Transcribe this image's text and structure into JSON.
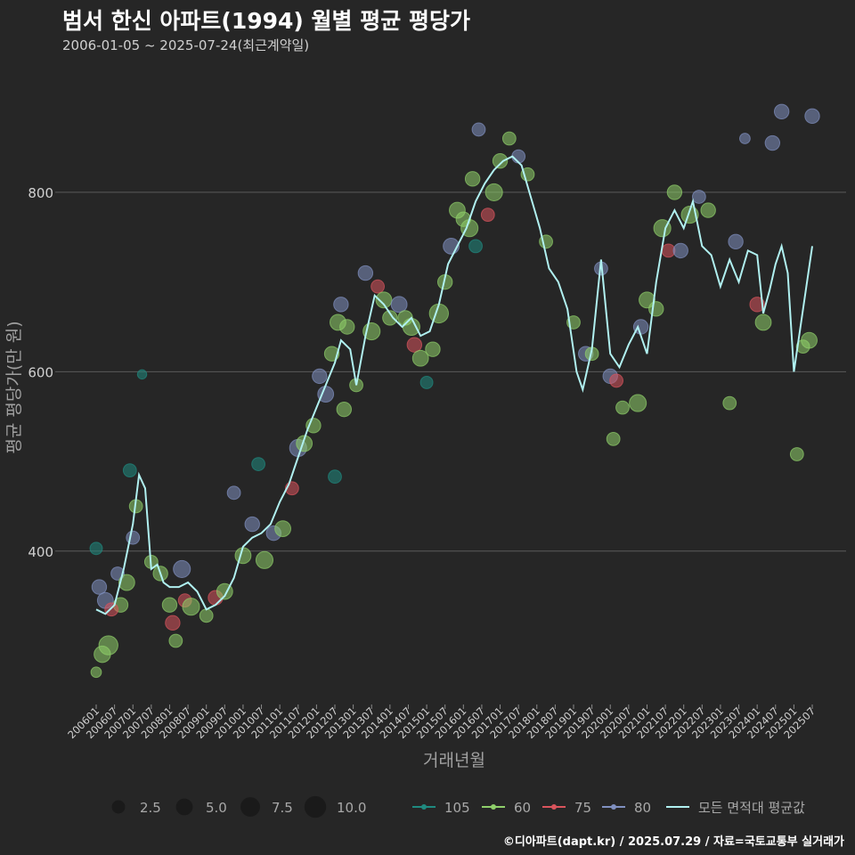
{
  "header": {
    "title": "범서 한신 아파트(1994) 월별 평균 평당가",
    "subtitle": "2006-01-05 ~ 2025-07-24(최근계약일)"
  },
  "footer": {
    "credit": "©디아파트(dapt.kr) / 2025.07.29 / 자료=국토교통부 실거래가"
  },
  "colors": {
    "background": "#262626",
    "grid": "#5a5a5a",
    "series_105": "#1f8a80",
    "series_60": "#8fcf6a",
    "series_75": "#d9545c",
    "series_80": "#8090c0",
    "average_line": "#b0f0f0"
  },
  "chart_data": {
    "type": "scatter",
    "title": "범서 한신 아파트(1994) 월별 평균 평당가",
    "xlabel": "거래년월",
    "ylabel": "평균 평당가(만 원)",
    "x_range": [
      "2006-01",
      "2025-07"
    ],
    "ylim": [
      230,
      930
    ],
    "yticks": [
      400,
      600,
      800
    ],
    "xticks": [
      "200601",
      "200607",
      "200701",
      "200707",
      "200801",
      "200807",
      "200901",
      "200907",
      "201001",
      "201007",
      "201101",
      "201107",
      "201201",
      "201207",
      "201301",
      "201307",
      "201401",
      "201407",
      "201501",
      "201507",
      "201601",
      "201607",
      "201701",
      "201707",
      "201801",
      "201807",
      "201901",
      "201907",
      "202001",
      "202007",
      "202101",
      "202107",
      "202201",
      "202207",
      "202301",
      "202307",
      "202401",
      "202407",
      "202501",
      "202507"
    ],
    "grid": "horizontal",
    "size_legend": {
      "labels": [
        "2.5",
        "5.0",
        "7.5",
        "10.0"
      ],
      "values": [
        2.5,
        5.0,
        7.5,
        10.0
      ]
    },
    "color_legend": [
      "105",
      "60",
      "75",
      "80",
      "모든 면적대 평균값"
    ],
    "legend_position": "bottom",
    "average_line": [
      [
        "2006-01",
        335
      ],
      [
        "2006-04",
        330
      ],
      [
        "2006-07",
        340
      ],
      [
        "2006-10",
        380
      ],
      [
        "2007-01",
        430
      ],
      [
        "2007-03",
        485
      ],
      [
        "2007-05",
        470
      ],
      [
        "2007-07",
        380
      ],
      [
        "2007-09",
        385
      ],
      [
        "2007-11",
        365
      ],
      [
        "2008-01",
        360
      ],
      [
        "2008-04",
        360
      ],
      [
        "2008-07",
        365
      ],
      [
        "2008-10",
        355
      ],
      [
        "2009-01",
        335
      ],
      [
        "2009-04",
        340
      ],
      [
        "2009-07",
        350
      ],
      [
        "2009-10",
        370
      ],
      [
        "2010-01",
        405
      ],
      [
        "2010-04",
        415
      ],
      [
        "2010-07",
        420
      ],
      [
        "2010-10",
        430
      ],
      [
        "2011-01",
        455
      ],
      [
        "2011-04",
        475
      ],
      [
        "2011-07",
        505
      ],
      [
        "2011-10",
        535
      ],
      [
        "2012-01",
        560
      ],
      [
        "2012-04",
        585
      ],
      [
        "2012-07",
        610
      ],
      [
        "2012-09",
        635
      ],
      [
        "2012-12",
        625
      ],
      [
        "2013-02",
        585
      ],
      [
        "2013-05",
        640
      ],
      [
        "2013-08",
        685
      ],
      [
        "2013-11",
        675
      ],
      [
        "2014-02",
        660
      ],
      [
        "2014-05",
        650
      ],
      [
        "2014-08",
        660
      ],
      [
        "2014-11",
        640
      ],
      [
        "2015-02",
        645
      ],
      [
        "2015-05",
        675
      ],
      [
        "2015-08",
        720
      ],
      [
        "2015-11",
        740
      ],
      [
        "2016-02",
        760
      ],
      [
        "2016-05",
        790
      ],
      [
        "2016-08",
        810
      ],
      [
        "2016-11",
        825
      ],
      [
        "2017-02",
        835
      ],
      [
        "2017-05",
        840
      ],
      [
        "2017-08",
        830
      ],
      [
        "2017-11",
        795
      ],
      [
        "2018-02",
        760
      ],
      [
        "2018-05",
        715
      ],
      [
        "2018-08",
        700
      ],
      [
        "2018-11",
        670
      ],
      [
        "2019-02",
        600
      ],
      [
        "2019-04",
        580
      ],
      [
        "2019-07",
        625
      ],
      [
        "2019-10",
        725
      ],
      [
        "2020-01",
        620
      ],
      [
        "2020-04",
        605
      ],
      [
        "2020-07",
        630
      ],
      [
        "2020-10",
        650
      ],
      [
        "2021-01",
        620
      ],
      [
        "2021-04",
        700
      ],
      [
        "2021-07",
        760
      ],
      [
        "2021-10",
        780
      ],
      [
        "2022-01",
        760
      ],
      [
        "2022-04",
        790
      ],
      [
        "2022-07",
        740
      ],
      [
        "2022-10",
        730
      ],
      [
        "2023-01",
        695
      ],
      [
        "2023-04",
        725
      ],
      [
        "2023-07",
        700
      ],
      [
        "2023-10",
        735
      ],
      [
        "2024-01",
        730
      ],
      [
        "2024-03",
        665
      ],
      [
        "2024-05",
        690
      ],
      [
        "2024-07",
        720
      ],
      [
        "2024-09",
        740
      ],
      [
        "2024-11",
        710
      ],
      [
        "2025-01",
        600
      ],
      [
        "2025-04",
        670
      ],
      [
        "2025-07",
        740
      ]
    ],
    "points": [
      {
        "x": "2006-01",
        "y": 265,
        "s": 60,
        "v": 1.5
      },
      {
        "x": "2006-03",
        "y": 285,
        "s": 60,
        "v": 5.5
      },
      {
        "x": "2006-05",
        "y": 295,
        "s": 60,
        "v": 8.0
      },
      {
        "x": "2006-02",
        "y": 360,
        "s": 80,
        "v": 4.0
      },
      {
        "x": "2006-04",
        "y": 345,
        "s": 80,
        "v": 5.0
      },
      {
        "x": "2006-08",
        "y": 375,
        "s": 80,
        "v": 3.0
      },
      {
        "x": "2006-01",
        "y": 403,
        "s": 105,
        "v": 2.5
      },
      {
        "x": "2006-09",
        "y": 340,
        "s": 60,
        "v": 4.0
      },
      {
        "x": "2006-06",
        "y": 335,
        "s": 75,
        "v": 3.0
      },
      {
        "x": "2006-11",
        "y": 365,
        "s": 60,
        "v": 5.0
      },
      {
        "x": "2006-12",
        "y": 490,
        "s": 105,
        "v": 3.0
      },
      {
        "x": "2007-02",
        "y": 450,
        "s": 60,
        "v": 3.0
      },
      {
        "x": "2007-01",
        "y": 415,
        "s": 80,
        "v": 3.0
      },
      {
        "x": "2007-04",
        "y": 597,
        "s": 105,
        "v": 1.0
      },
      {
        "x": "2007-07",
        "y": 388,
        "s": 60,
        "v": 3.0
      },
      {
        "x": "2007-10",
        "y": 375,
        "s": 60,
        "v": 4.0
      },
      {
        "x": "2008-01",
        "y": 340,
        "s": 60,
        "v": 4.0
      },
      {
        "x": "2008-02",
        "y": 320,
        "s": 75,
        "v": 4.0
      },
      {
        "x": "2008-03",
        "y": 300,
        "s": 60,
        "v": 3.0
      },
      {
        "x": "2008-05",
        "y": 380,
        "s": 80,
        "v": 6.0
      },
      {
        "x": "2008-06",
        "y": 345,
        "s": 75,
        "v": 3.0
      },
      {
        "x": "2008-08",
        "y": 338,
        "s": 60,
        "v": 6.0
      },
      {
        "x": "2009-01",
        "y": 328,
        "s": 60,
        "v": 3.0
      },
      {
        "x": "2009-04",
        "y": 348,
        "s": 75,
        "v": 4.0
      },
      {
        "x": "2009-07",
        "y": 355,
        "s": 60,
        "v": 5.0
      },
      {
        "x": "2009-10",
        "y": 465,
        "s": 80,
        "v": 3.0
      },
      {
        "x": "2010-01",
        "y": 395,
        "s": 60,
        "v": 5.0
      },
      {
        "x": "2010-04",
        "y": 430,
        "s": 80,
        "v": 4.0
      },
      {
        "x": "2010-06",
        "y": 497,
        "s": 105,
        "v": 3.0
      },
      {
        "x": "2010-08",
        "y": 390,
        "s": 60,
        "v": 6.0
      },
      {
        "x": "2010-11",
        "y": 420,
        "s": 80,
        "v": 4.0
      },
      {
        "x": "2011-02",
        "y": 425,
        "s": 60,
        "v": 5.0
      },
      {
        "x": "2011-05",
        "y": 470,
        "s": 75,
        "v": 3.0
      },
      {
        "x": "2011-07",
        "y": 515,
        "s": 80,
        "v": 6.0
      },
      {
        "x": "2011-09",
        "y": 520,
        "s": 60,
        "v": 5.0
      },
      {
        "x": "2011-12",
        "y": 540,
        "s": 60,
        "v": 4.0
      },
      {
        "x": "2012-02",
        "y": 595,
        "s": 80,
        "v": 4.0
      },
      {
        "x": "2012-04",
        "y": 575,
        "s": 80,
        "v": 5.0
      },
      {
        "x": "2012-06",
        "y": 620,
        "s": 60,
        "v": 4.0
      },
      {
        "x": "2012-08",
        "y": 655,
        "s": 60,
        "v": 5.0
      },
      {
        "x": "2012-09",
        "y": 675,
        "s": 80,
        "v": 4.0
      },
      {
        "x": "2012-11",
        "y": 650,
        "s": 60,
        "v": 4.0
      },
      {
        "x": "2012-07",
        "y": 483,
        "s": 105,
        "v": 3.0
      },
      {
        "x": "2012-10",
        "y": 558,
        "s": 60,
        "v": 4.0
      },
      {
        "x": "2013-02",
        "y": 585,
        "s": 60,
        "v": 3.0
      },
      {
        "x": "2013-05",
        "y": 710,
        "s": 80,
        "v": 4.0
      },
      {
        "x": "2013-07",
        "y": 645,
        "s": 60,
        "v": 6.0
      },
      {
        "x": "2013-09",
        "y": 695,
        "s": 75,
        "v": 3.0
      },
      {
        "x": "2013-11",
        "y": 680,
        "s": 60,
        "v": 5.0
      },
      {
        "x": "2014-01",
        "y": 660,
        "s": 60,
        "v": 4.0
      },
      {
        "x": "2014-04",
        "y": 675,
        "s": 80,
        "v": 5.0
      },
      {
        "x": "2014-06",
        "y": 660,
        "s": 60,
        "v": 4.0
      },
      {
        "x": "2014-08",
        "y": 650,
        "s": 60,
        "v": 6.0
      },
      {
        "x": "2014-09",
        "y": 630,
        "s": 75,
        "v": 4.0
      },
      {
        "x": "2014-11",
        "y": 615,
        "s": 60,
        "v": 5.0
      },
      {
        "x": "2015-01",
        "y": 588,
        "s": 105,
        "v": 2.5
      },
      {
        "x": "2015-03",
        "y": 625,
        "s": 60,
        "v": 4.0
      },
      {
        "x": "2015-05",
        "y": 665,
        "s": 60,
        "v": 8.0
      },
      {
        "x": "2015-07",
        "y": 700,
        "s": 60,
        "v": 4.0
      },
      {
        "x": "2015-09",
        "y": 740,
        "s": 80,
        "v": 5.0
      },
      {
        "x": "2015-11",
        "y": 780,
        "s": 60,
        "v": 5.0
      },
      {
        "x": "2016-01",
        "y": 770,
        "s": 60,
        "v": 4.0
      },
      {
        "x": "2016-03",
        "y": 760,
        "s": 60,
        "v": 6.0
      },
      {
        "x": "2016-05",
        "y": 740,
        "s": 105,
        "v": 3.0
      },
      {
        "x": "2016-04",
        "y": 815,
        "s": 60,
        "v": 4.0
      },
      {
        "x": "2016-06",
        "y": 870,
        "s": 80,
        "v": 3.0
      },
      {
        "x": "2016-09",
        "y": 775,
        "s": 75,
        "v": 3.0
      },
      {
        "x": "2016-11",
        "y": 800,
        "s": 60,
        "v": 6.0
      },
      {
        "x": "2017-01",
        "y": 835,
        "s": 60,
        "v": 4.0
      },
      {
        "x": "2017-04",
        "y": 860,
        "s": 60,
        "v": 3.0
      },
      {
        "x": "2017-07",
        "y": 840,
        "s": 80,
        "v": 3.0
      },
      {
        "x": "2017-10",
        "y": 820,
        "s": 60,
        "v": 3.0
      },
      {
        "x": "2018-04",
        "y": 745,
        "s": 60,
        "v": 3.0
      },
      {
        "x": "2019-01",
        "y": 655,
        "s": 60,
        "v": 3.0
      },
      {
        "x": "2019-05",
        "y": 620,
        "s": 80,
        "v": 4.0
      },
      {
        "x": "2019-07",
        "y": 620,
        "s": 60,
        "v": 3.0
      },
      {
        "x": "2019-10",
        "y": 715,
        "s": 80,
        "v": 3.0
      },
      {
        "x": "2020-01",
        "y": 595,
        "s": 80,
        "v": 4.0
      },
      {
        "x": "2020-02",
        "y": 525,
        "s": 60,
        "v": 3.0
      },
      {
        "x": "2020-03",
        "y": 590,
        "s": 75,
        "v": 3.0
      },
      {
        "x": "2020-05",
        "y": 560,
        "s": 60,
        "v": 3.0
      },
      {
        "x": "2020-10",
        "y": 565,
        "s": 60,
        "v": 6.0
      },
      {
        "x": "2020-11",
        "y": 650,
        "s": 80,
        "v": 4.0
      },
      {
        "x": "2021-01",
        "y": 680,
        "s": 60,
        "v": 5.0
      },
      {
        "x": "2021-04",
        "y": 670,
        "s": 60,
        "v": 4.0
      },
      {
        "x": "2021-06",
        "y": 760,
        "s": 60,
        "v": 6.0
      },
      {
        "x": "2021-08",
        "y": 735,
        "s": 75,
        "v": 3.0
      },
      {
        "x": "2021-10",
        "y": 800,
        "s": 60,
        "v": 4.0
      },
      {
        "x": "2021-12",
        "y": 735,
        "s": 80,
        "v": 4.0
      },
      {
        "x": "2022-03",
        "y": 775,
        "s": 60,
        "v": 6.0
      },
      {
        "x": "2022-06",
        "y": 795,
        "s": 80,
        "v": 3.0
      },
      {
        "x": "2022-09",
        "y": 780,
        "s": 60,
        "v": 4.0
      },
      {
        "x": "2023-04",
        "y": 565,
        "s": 60,
        "v": 3.0
      },
      {
        "x": "2023-06",
        "y": 745,
        "s": 80,
        "v": 4.0
      },
      {
        "x": "2023-09",
        "y": 860,
        "s": 80,
        "v": 1.5
      },
      {
        "x": "2024-01",
        "y": 675,
        "s": 75,
        "v": 4.0
      },
      {
        "x": "2024-03",
        "y": 655,
        "s": 60,
        "v": 5.0
      },
      {
        "x": "2024-06",
        "y": 855,
        "s": 80,
        "v": 4.0
      },
      {
        "x": "2024-09",
        "y": 890,
        "s": 80,
        "v": 4.0
      },
      {
        "x": "2025-02",
        "y": 508,
        "s": 60,
        "v": 3.0
      },
      {
        "x": "2025-04",
        "y": 628,
        "s": 60,
        "v": 3.0
      },
      {
        "x": "2025-06",
        "y": 635,
        "s": 60,
        "v": 5.0
      },
      {
        "x": "2025-07",
        "y": 885,
        "s": 80,
        "v": 4.0
      }
    ]
  }
}
